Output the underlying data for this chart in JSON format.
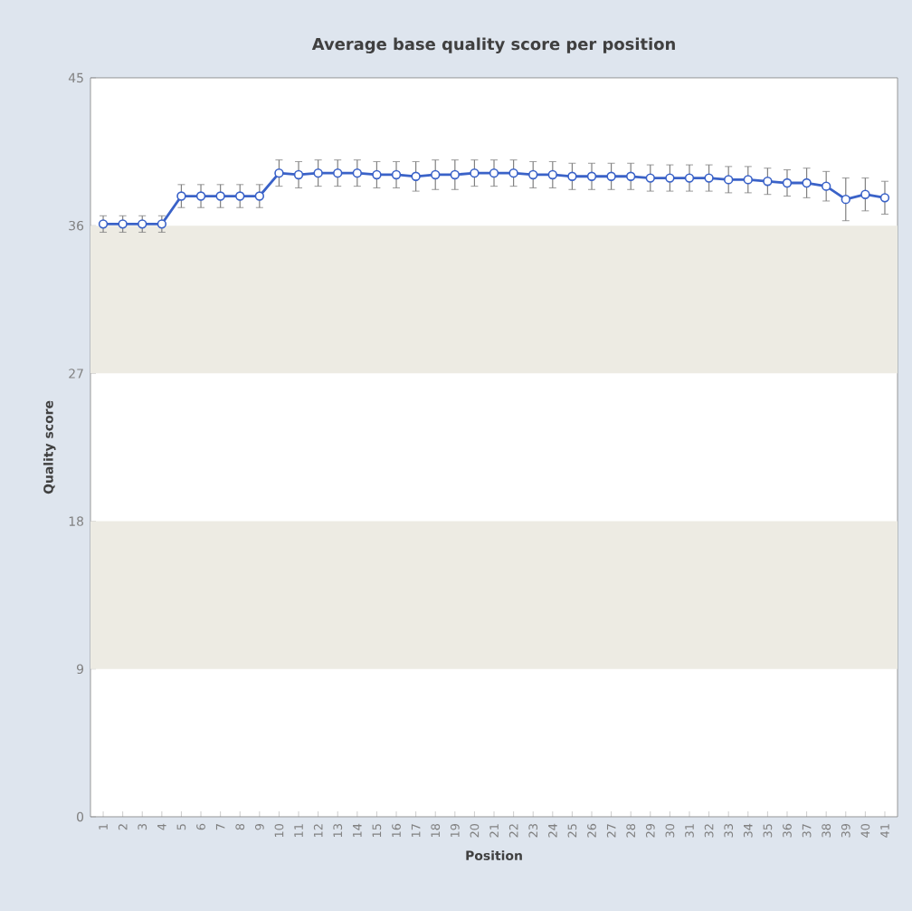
{
  "chart_data": {
    "type": "line",
    "title": "Average base quality score per position",
    "xlabel": "Position",
    "ylabel": "Quality score",
    "categories": [
      "1",
      "2",
      "3",
      "4",
      "5",
      "6",
      "7",
      "8",
      "9",
      "10",
      "11",
      "12",
      "13",
      "14",
      "15",
      "16",
      "17",
      "18",
      "19",
      "20",
      "21",
      "22",
      "23",
      "24",
      "25",
      "26",
      "27",
      "28",
      "29",
      "30",
      "31",
      "32",
      "33",
      "34",
      "35",
      "36",
      "37",
      "38",
      "39",
      "40",
      "41"
    ],
    "series": [
      {
        "color": "#3a62c8",
        "values": [
          36.1,
          36.1,
          36.1,
          36.1,
          37.8,
          37.8,
          37.8,
          37.8,
          37.8,
          39.2,
          39.1,
          39.2,
          39.2,
          39.2,
          39.1,
          39.1,
          39.0,
          39.1,
          39.1,
          39.2,
          39.2,
          39.2,
          39.1,
          39.1,
          39.0,
          39.0,
          39.0,
          39.0,
          38.9,
          38.9,
          38.9,
          38.9,
          38.8,
          38.8,
          38.7,
          38.6,
          38.6,
          38.4,
          37.6,
          37.9,
          37.7
        ],
        "errors": [
          0.5,
          0.5,
          0.5,
          0.5,
          0.7,
          0.7,
          0.7,
          0.7,
          0.7,
          0.8,
          0.8,
          0.8,
          0.8,
          0.8,
          0.8,
          0.8,
          0.9,
          0.9,
          0.9,
          0.8,
          0.8,
          0.8,
          0.8,
          0.8,
          0.8,
          0.8,
          0.8,
          0.8,
          0.8,
          0.8,
          0.8,
          0.8,
          0.8,
          0.8,
          0.8,
          0.8,
          0.9,
          0.9,
          1.3,
          1.0,
          1.0
        ]
      }
    ],
    "ylim": [
      0,
      45
    ],
    "yticks": [
      0,
      9,
      18,
      27,
      36,
      45
    ],
    "marker": "circle",
    "bands": [
      {
        "axis": "y",
        "from": 27,
        "to": 36,
        "color": "#edebe3"
      },
      {
        "axis": "y",
        "from": 9,
        "to": 18,
        "color": "#edebe3"
      }
    ]
  }
}
